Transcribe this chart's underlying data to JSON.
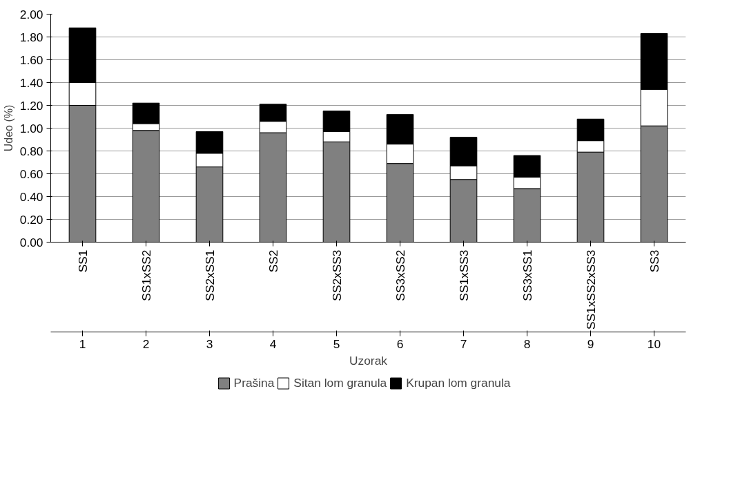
{
  "chart_data": {
    "type": "bar",
    "stacked": true,
    "ylabel": "Udeo (%)",
    "xlabel": "Uzorak",
    "categories": [
      "SS1",
      "SS1xSS2",
      "SS2xSS1",
      "SS2",
      "SS2xSS3",
      "SS3xSS2",
      "SS1xSS3",
      "SS3xSS1",
      "SS1xSS2xSS3",
      "SS3"
    ],
    "annotations": [
      {
        "text": "1",
        "x": "SS1"
      },
      {
        "text": "2",
        "x": "SS1xSS2"
      },
      {
        "text": "3",
        "x": "SS2xSS1"
      },
      {
        "text": "4",
        "x": "SS2"
      },
      {
        "text": "5",
        "x": "SS2xSS3"
      },
      {
        "text": "6",
        "x": "SS3xSS2"
      },
      {
        "text": "7",
        "x": "SS1xSS3"
      },
      {
        "text": "8",
        "x": "SS3xSS1"
      },
      {
        "text": "9",
        "x": "SS1xSS2xSS3"
      },
      {
        "text": "10",
        "x": "SS3"
      }
    ],
    "ylim": [
      0,
      2
    ],
    "yticks": [
      {
        "value": 0,
        "label": "0.00"
      },
      {
        "value": 0.2,
        "label": "0.20"
      },
      {
        "value": 0.4,
        "label": "0.40"
      },
      {
        "value": 0.6,
        "label": "0.60"
      },
      {
        "value": 0.8,
        "label": "0.80"
      },
      {
        "value": 1.0,
        "label": "1.00"
      },
      {
        "value": 1.2,
        "label": "1.20"
      },
      {
        "value": 1.4,
        "label": "1.40"
      },
      {
        "value": 1.6,
        "label": "1.60"
      },
      {
        "value": 1.8,
        "label": "1.80"
      },
      {
        "value": 2.0,
        "label": "2.00"
      }
    ],
    "grid": "y",
    "legend": "bottom",
    "series": [
      {
        "name": "Prašina",
        "color": "#808080",
        "values": [
          1.2,
          0.98,
          0.66,
          0.96,
          0.88,
          0.69,
          0.55,
          0.47,
          0.79,
          1.02
        ]
      },
      {
        "name": "Sitan lom granula",
        "color": "#ffffff",
        "values": [
          0.2,
          0.06,
          0.12,
          0.1,
          0.09,
          0.17,
          0.12,
          0.1,
          0.1,
          0.32
        ]
      },
      {
        "name": "Krupan lom granula",
        "color": "#000000",
        "values": [
          0.48,
          0.18,
          0.19,
          0.15,
          0.18,
          0.26,
          0.25,
          0.19,
          0.19,
          0.49
        ]
      }
    ]
  }
}
